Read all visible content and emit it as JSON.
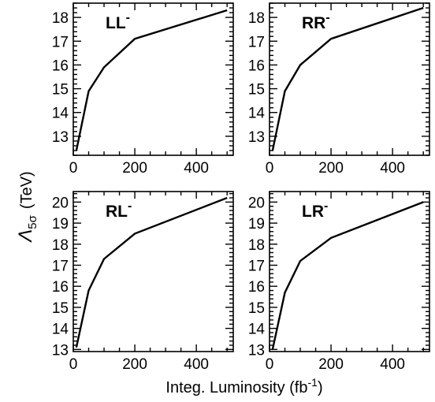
{
  "figure": {
    "ylabel_main": "Λ",
    "ylabel_sub": "5σ",
    "ylabel_unit": "(TeV)",
    "xlabel_main": "Integ. Luminosity (fb",
    "xlabel_sup": "-1",
    "xlabel_close": ")"
  },
  "chart_data": [
    {
      "type": "line",
      "label": "LL",
      "label_sup": "-",
      "x": [
        10,
        50,
        100,
        200,
        500
      ],
      "y": [
        12.4,
        14.9,
        15.9,
        17.1,
        18.3
      ],
      "xlim": [
        0,
        520
      ],
      "ylim": [
        12.2,
        18.6
      ],
      "xticks": [
        0,
        200,
        400
      ],
      "yticks": [
        13,
        14,
        15,
        16,
        17,
        18
      ],
      "grid": false
    },
    {
      "type": "line",
      "label": "RR",
      "label_sup": "-",
      "x": [
        10,
        50,
        100,
        200,
        500
      ],
      "y": [
        12.4,
        14.9,
        16.0,
        17.1,
        18.4
      ],
      "xlim": [
        0,
        520
      ],
      "ylim": [
        12.2,
        18.6
      ],
      "xticks": [
        0,
        200,
        400
      ],
      "yticks": [
        13,
        14,
        15,
        16,
        17,
        18
      ],
      "grid": false
    },
    {
      "type": "line",
      "label": "RL",
      "label_sup": "-",
      "x": [
        10,
        50,
        100,
        200,
        500
      ],
      "y": [
        13.1,
        15.8,
        17.3,
        18.5,
        20.2
      ],
      "xlim": [
        0,
        520
      ],
      "ylim": [
        12.9,
        20.5
      ],
      "xticks": [
        0,
        200,
        400
      ],
      "yticks": [
        13,
        14,
        15,
        16,
        17,
        18,
        19,
        20
      ],
      "grid": false
    },
    {
      "type": "line",
      "label": "LR",
      "label_sup": "-",
      "x": [
        10,
        50,
        100,
        200,
        500
      ],
      "y": [
        13.0,
        15.7,
        17.2,
        18.3,
        20.0
      ],
      "xlim": [
        0,
        520
      ],
      "ylim": [
        12.9,
        20.5
      ],
      "xticks": [
        0,
        200,
        400
      ],
      "yticks": [
        13,
        14,
        15,
        16,
        17,
        18,
        19,
        20
      ],
      "grid": false
    }
  ]
}
